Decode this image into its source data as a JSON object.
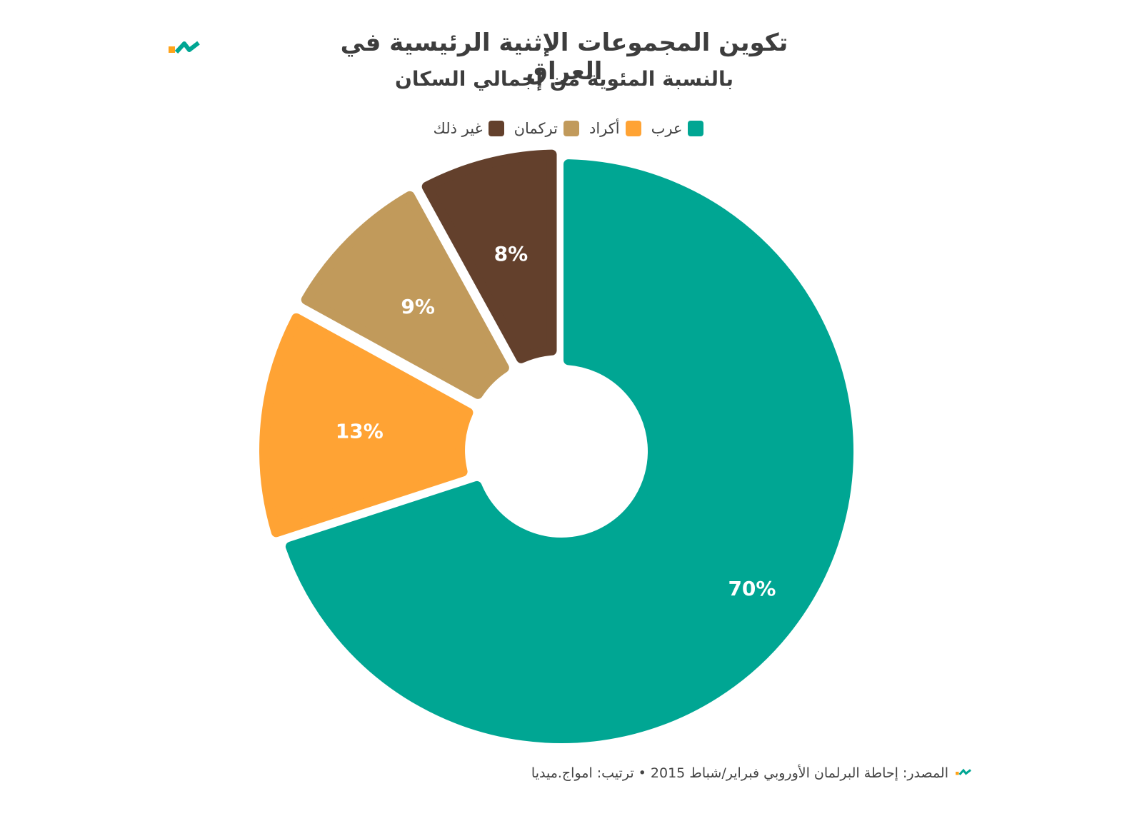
{
  "title": "تكوين المجموعات الإثنية الرئيسية في العراق",
  "subtitle": "بالنسبة المئوية من إجمالي السكان",
  "source": "المصدر: إحاطة البرلمان الأوروبي فبراير/شباط 2015 • ترتيب: امواج.ميديا",
  "colors": {
    "brand_teal": "#00a693",
    "brand_orange": "#ffa31a"
  },
  "chart_data": {
    "type": "pie",
    "variant": "donut",
    "legend_position": "top-center",
    "slices": [
      {
        "label": "عرب",
        "value": 70,
        "display": "70%",
        "color": "#00a693"
      },
      {
        "label": "أكراد",
        "value": 13,
        "display": "13%",
        "color": "#ffa334"
      },
      {
        "label": "تركمان",
        "value": 9,
        "display": "9%",
        "color": "#c19a5b"
      },
      {
        "label": "غير ذلك",
        "value": 8,
        "display": "8%",
        "color": "#63402c"
      }
    ]
  }
}
